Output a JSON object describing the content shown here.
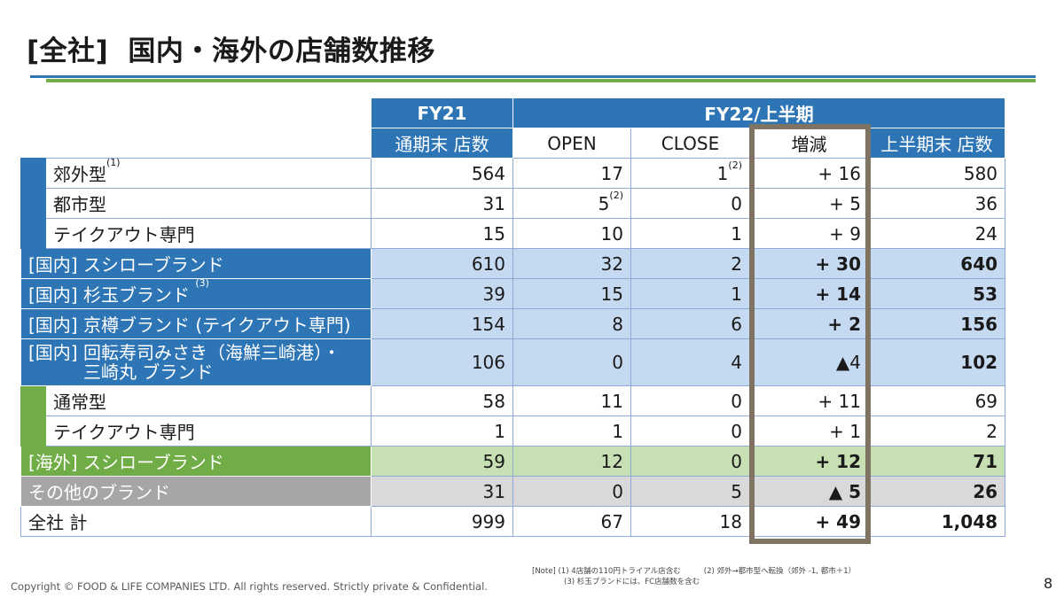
{
  "title": {
    "bracket": "[全社]",
    "main": "国内・海外の店舗数推移"
  },
  "header": {
    "fy21": "FY21",
    "fy22": "FY22/上半期",
    "col_fy21_sub": "通期末 店数",
    "col_open": "OPEN",
    "col_close": "CLOSE",
    "col_change": "増減",
    "col_h1_end": "上半期末 店数"
  },
  "rows": [
    {
      "label": "郊外型",
      "label_sup": "(1)",
      "fy21": "564",
      "open": "17",
      "close": "1",
      "close_sup": "(2)",
      "change": "+ 16",
      "h1": "580"
    },
    {
      "label": "都市型",
      "fy21": "31",
      "open": "5",
      "open_sup": "(2)",
      "close": "0",
      "change": "+ 5",
      "h1": "36"
    },
    {
      "label": "テイクアウト専門",
      "fy21": "15",
      "open": "10",
      "close": "1",
      "change": "+ 9",
      "h1": "24"
    },
    {
      "label": "[国内] スシローブランド",
      "fy21": "610",
      "open": "32",
      "close": "2",
      "change": "+ 30",
      "h1": "640"
    },
    {
      "label": "[国内] 杉玉ブランド",
      "label_sup": "(3)",
      "fy21": "39",
      "open": "15",
      "close": "1",
      "change": "+ 14",
      "h1": "53"
    },
    {
      "label": "[国内] 京樽ブランド (テイクアウト専門)",
      "fy21": "154",
      "open": "8",
      "close": "6",
      "change": "+ 2",
      "h1": "156"
    },
    {
      "label_line1": "[国内] 回転寿司みさき（海鮮三崎港）・",
      "label_line2": "三崎丸 ブランド",
      "fy21": "106",
      "open": "0",
      "close": "4",
      "change": "▲4",
      "h1": "102"
    },
    {
      "label": "通常型",
      "fy21": "58",
      "open": "11",
      "close": "0",
      "change": "+ 11",
      "h1": "69"
    },
    {
      "label": "テイクアウト専門",
      "fy21": "1",
      "open": "1",
      "close": "0",
      "change": "+ 1",
      "h1": "2"
    },
    {
      "label": "[海外] スシローブランド",
      "fy21": "59",
      "open": "12",
      "close": "0",
      "change": "+ 12",
      "h1": "71"
    },
    {
      "label": "その他のブランド",
      "fy21": "31",
      "open": "0",
      "close": "5",
      "change": "▲ 5",
      "h1": "26"
    },
    {
      "label": "全社 計",
      "fy21": "999",
      "open": "67",
      "close": "18",
      "change": "+ 49",
      "h1": "1,048"
    }
  ],
  "notes": {
    "prefix": "[Note]",
    "n1": "(1) 4店舗の110円トライアル店含む",
    "n2": "(2) 郊外→都市型へ転換（郊外 -1, 都市＋1）",
    "n3": "(3) 杉玉ブランドには、FC店舗数を含む"
  },
  "footer": {
    "copyright": "Copyright © FOOD & LIFE COMPANIES LTD. All rights reserved. Strictly private & Confidential.",
    "page": "8"
  },
  "colors": {
    "blue": "#2e75b6",
    "light_blue": "#c5d9f1",
    "green": "#70ad47",
    "light_green": "#c6e0b4",
    "gray": "#a6a6a6",
    "light_gray": "#d9d9d9",
    "highlight_border": "#7f7464"
  }
}
